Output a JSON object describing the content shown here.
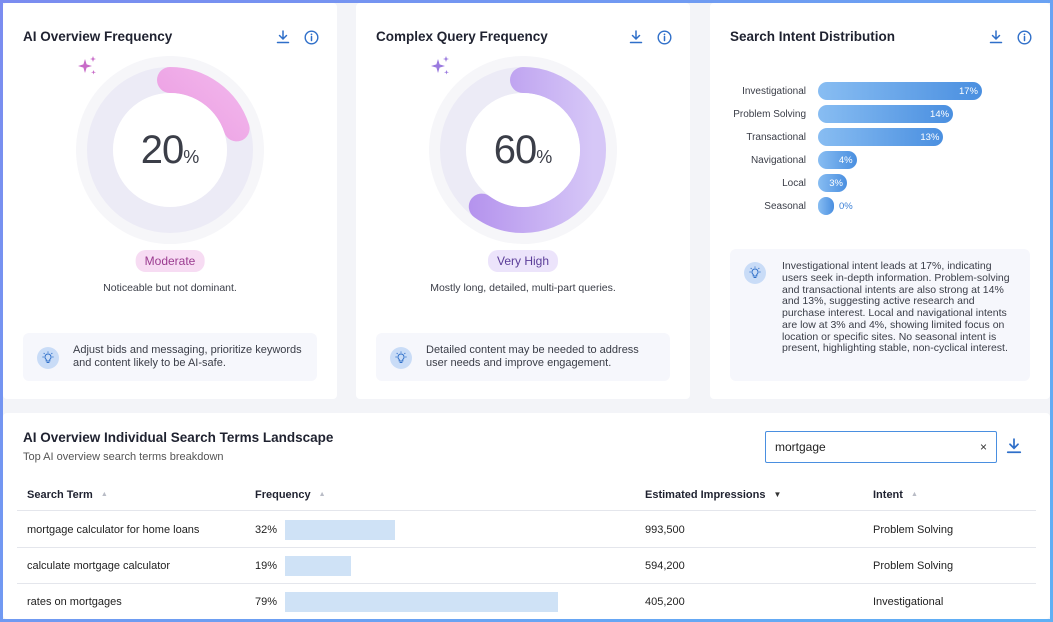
{
  "cards": {
    "ai_overview": {
      "title": "AI Overview Frequency",
      "value": "20",
      "unit": "%",
      "fraction": 0.2,
      "badge": "Moderate",
      "description": "Noticeable but not dominant.",
      "tip": "Adjust bids and messaging, prioritize keywords and content likely to be AI-safe.",
      "color_start": "#e37fd6",
      "color_end": "#f2b6ec",
      "badge_bg": "#f7dcf3",
      "badge_fg": "#9b3c90"
    },
    "complex_query": {
      "title": "Complex Query Frequency",
      "value": "60",
      "unit": "%",
      "fraction": 0.6,
      "badge": "Very High",
      "description": "Mostly long, detailed, multi-part queries.",
      "tip": "Detailed content may be needed to address user needs and improve engagement.",
      "color_start": "#b08cec",
      "color_end": "#d6c7f7",
      "badge_bg": "#ece4fb",
      "badge_fg": "#5b3d99"
    },
    "intent": {
      "title": "Search Intent Distribution",
      "items": [
        {
          "label": "Investigational",
          "value": 17,
          "text": "17%"
        },
        {
          "label": "Problem Solving",
          "value": 14,
          "text": "14%"
        },
        {
          "label": "Transactional",
          "value": 13,
          "text": "13%"
        },
        {
          "label": "Navigational",
          "value": 4,
          "text": "4%"
        },
        {
          "label": "Local",
          "value": 3,
          "text": "3%"
        },
        {
          "label": "Seasonal",
          "value": 0,
          "text": "0%"
        }
      ],
      "tip": "Investigational intent leads at 17%, indicating users seek in-depth information. Problem-solving and transactional intents are also strong at 14% and 13%, suggesting active research and purchase interest. Local and navigational intents are low at 3% and 4%, showing limited focus on location or specific sites. No seasonal intent is present, highlighting stable, non-cyclical interest."
    }
  },
  "table": {
    "title": "AI Overview Individual Search Terms Landscape",
    "subtitle": "Top AI overview search terms breakdown",
    "search_value": "mortgage",
    "clear_label": "×",
    "columns": {
      "term": "Search Term",
      "frequency": "Frequency",
      "impressions": "Estimated Impressions",
      "intent": "Intent"
    },
    "rows": [
      {
        "term": "mortgage calculator for home loans",
        "freq_text": "32%",
        "freq": 0.32,
        "impressions": "993,500",
        "intent": "Problem Solving"
      },
      {
        "term": "calculate mortgage calculator",
        "freq_text": "19%",
        "freq": 0.19,
        "impressions": "594,200",
        "intent": "Problem Solving"
      },
      {
        "term": "rates on mortgages",
        "freq_text": "79%",
        "freq": 0.79,
        "impressions": "405,200",
        "intent": "Investigational"
      }
    ]
  },
  "icons": {
    "download": "download-icon",
    "info": "info-icon",
    "sparkle": "sparkle-icon",
    "lightbulb": "lightbulb-icon"
  }
}
